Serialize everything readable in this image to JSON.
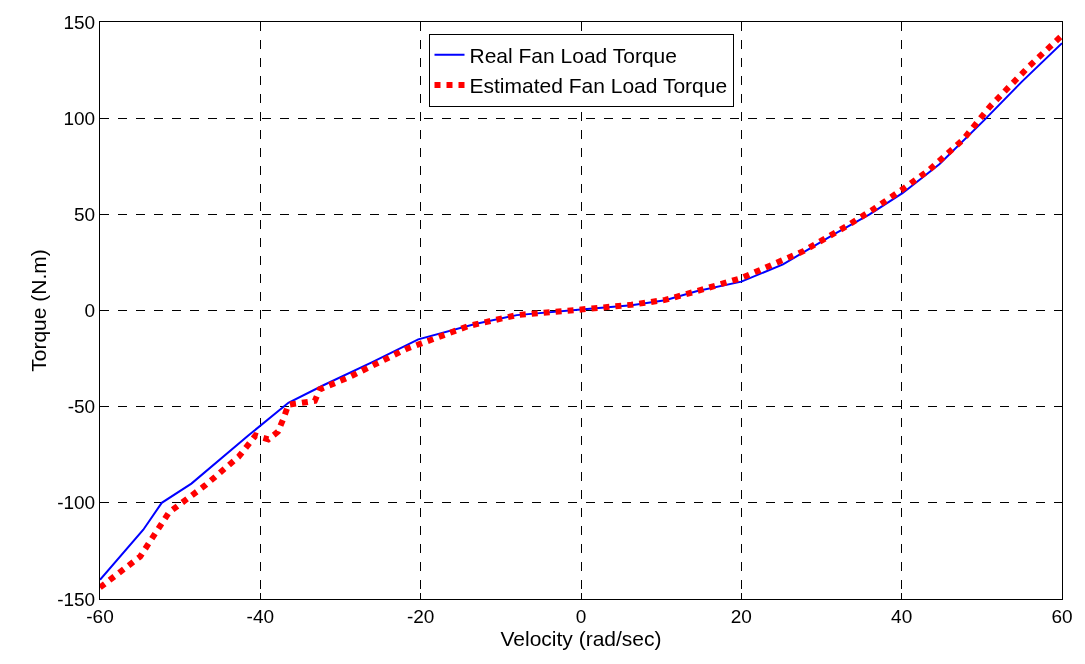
{
  "chart_data": {
    "type": "line",
    "xlabel": "Velocity (rad/sec)",
    "ylabel": "Torque (N.m)",
    "xlim": [
      -60,
      60
    ],
    "ylim": [
      -150,
      150
    ],
    "xticks": [
      -60,
      -40,
      -20,
      0,
      20,
      40,
      60
    ],
    "yticks": [
      -150,
      -100,
      -50,
      0,
      50,
      100,
      150
    ],
    "grid": true,
    "legend": "top",
    "marker": "none",
    "series": [
      {
        "name": "Real Fan Load Torque",
        "color": "#0000ff",
        "line_style": "solid",
        "x": [
          -60,
          -54.6,
          -52.3,
          -48.6,
          -41.5,
          -36.5,
          -32.2,
          -26.1,
          -20.3,
          -13.2,
          -8,
          0,
          6.3,
          10.5,
          14.4,
          20,
          25.2,
          31.7,
          36,
          40.1,
          44.7,
          50.3,
          55,
          60
        ],
        "values": [
          -140,
          -114,
          -100,
          -90,
          -65,
          -48,
          -39,
          -27,
          -15,
          -7,
          -2.4,
          0.5,
          2.7,
          5.3,
          10,
          15,
          24,
          40,
          50,
          61,
          76,
          99,
          119,
          139
        ]
      },
      {
        "name": "Estimated Fan Load Torque",
        "color": "#ff0000",
        "line_style": "dotted",
        "x": [
          -60,
          -55,
          -51.4,
          -46.9,
          -42.7,
          -40.6,
          -39,
          -37.8,
          -37.1,
          -36.5,
          -33.2,
          -32.6,
          -29.1,
          -21.8,
          -14,
          -8,
          0,
          6.3,
          10.5,
          14.4,
          20.1,
          27.8,
          33.2,
          36.6,
          40.1,
          43.4,
          47.7,
          51,
          55.9,
          60
        ],
        "values": [
          -144,
          -128,
          -105,
          -91,
          -76,
          -65,
          -67,
          -63,
          -56,
          -49,
          -47,
          -41,
          -35,
          -20,
          -8,
          -2.4,
          0.5,
          3,
          5.5,
          10,
          17,
          31,
          44,
          53,
          63,
          73,
          89,
          106,
          127,
          143
        ]
      }
    ]
  }
}
